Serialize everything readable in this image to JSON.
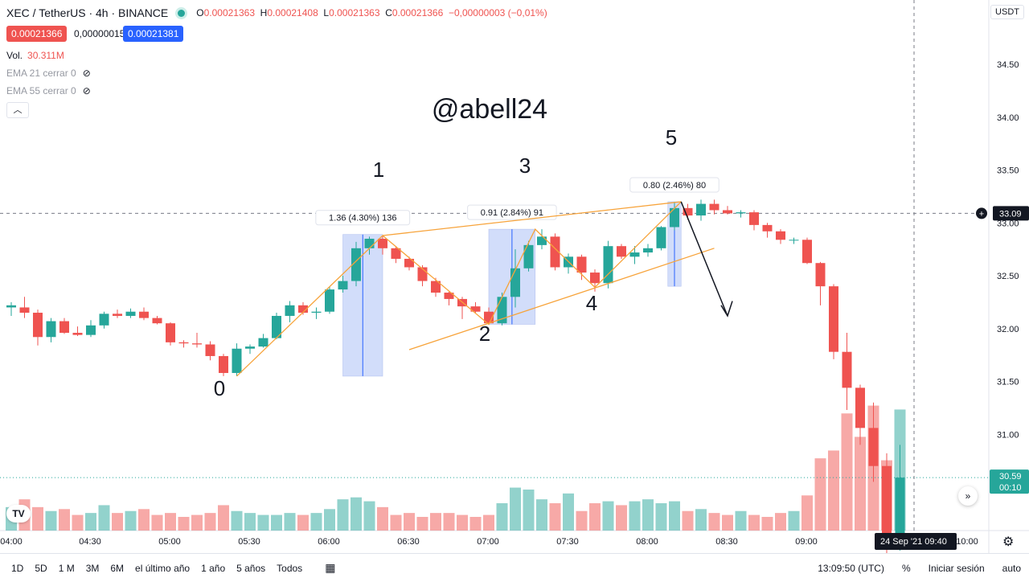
{
  "header": {
    "symbol": "XEC / TetherUS · 4h · BINANCE",
    "open_label": "O",
    "open": "0.00021363",
    "high_label": "H",
    "high": "0.00021408",
    "low_label": "L",
    "low": "0.00021363",
    "close_label": "C",
    "close": "0.00021366",
    "change": "−0,00000003 (−0,01%)",
    "sell_price": "0.00021366",
    "spread": "0,00000015",
    "buy_price": "0.00021381"
  },
  "indicators": {
    "vol_label": "Vol.",
    "vol_value": "30.311M",
    "ema21": "EMA 21 cerrar 0",
    "ema55": "EMA 55 cerrar 0"
  },
  "currency_badge": "USDT",
  "watermark": "@abell24",
  "colors": {
    "up": "#26a69a",
    "down": "#ef5350",
    "upvol": "#26a69a",
    "downvol": "#ef5350",
    "fib": "#f7a33a",
    "box": "#9db5f5"
  },
  "chart_data": {
    "type": "candlestick",
    "y_ticks": [
      "34.50",
      "34.00",
      "33.50",
      "33.00",
      "32.50",
      "32.00",
      "31.50",
      "31.00"
    ],
    "x_ticks": [
      "04:00",
      "04:30",
      "05:00",
      "05:30",
      "06:00",
      "06:30",
      "07:00",
      "07:30",
      "08:00",
      "08:30",
      "09:00",
      "10:00"
    ],
    "current_price": "33.09",
    "last_price": "30.59",
    "last_countdown": "00:10",
    "crosshair_date": "24 Sep '21",
    "crosshair_time": "09:40",
    "candles": [
      [
        32.2,
        32.25,
        32.12,
        32.22
      ],
      [
        32.2,
        32.3,
        32.1,
        32.15
      ],
      [
        32.15,
        32.18,
        31.84,
        31.92
      ],
      [
        31.92,
        32.1,
        31.87,
        32.07
      ],
      [
        32.07,
        32.1,
        31.95,
        31.96
      ],
      [
        31.96,
        32.02,
        31.93,
        31.94
      ],
      [
        31.94,
        32.08,
        31.92,
        32.03
      ],
      [
        32.03,
        32.16,
        32.0,
        32.14
      ],
      [
        32.14,
        32.18,
        32.1,
        32.12
      ],
      [
        32.12,
        32.19,
        32.1,
        32.16
      ],
      [
        32.16,
        32.2,
        32.08,
        32.1
      ],
      [
        32.1,
        32.12,
        32.04,
        32.05
      ],
      [
        32.05,
        32.06,
        31.84,
        31.87
      ],
      [
        31.87,
        31.89,
        31.82,
        31.86
      ],
      [
        31.86,
        31.96,
        31.82,
        31.85
      ],
      [
        31.85,
        31.88,
        31.7,
        31.74
      ],
      [
        31.74,
        31.76,
        31.55,
        31.58
      ],
      [
        31.58,
        31.86,
        31.55,
        31.81
      ],
      [
        31.81,
        31.85,
        31.76,
        31.83
      ],
      [
        31.83,
        31.95,
        31.82,
        31.91
      ],
      [
        31.91,
        32.15,
        31.9,
        32.12
      ],
      [
        32.12,
        32.26,
        32.06,
        32.22
      ],
      [
        32.22,
        32.25,
        32.13,
        32.15
      ],
      [
        32.15,
        32.2,
        32.09,
        32.16
      ],
      [
        32.16,
        32.4,
        32.14,
        32.37
      ],
      [
        32.37,
        32.5,
        32.34,
        32.45
      ],
      [
        32.45,
        32.82,
        32.4,
        32.76
      ],
      [
        32.76,
        32.87,
        32.7,
        32.85
      ],
      [
        32.85,
        32.88,
        32.7,
        32.76
      ],
      [
        32.76,
        32.78,
        32.62,
        32.66
      ],
      [
        32.66,
        32.68,
        32.55,
        32.58
      ],
      [
        32.58,
        32.6,
        32.4,
        32.45
      ],
      [
        32.45,
        32.48,
        32.3,
        32.34
      ],
      [
        32.34,
        32.35,
        32.22,
        32.28
      ],
      [
        32.28,
        32.3,
        32.09,
        32.21
      ],
      [
        32.21,
        32.25,
        32.15,
        32.16
      ],
      [
        32.16,
        32.2,
        32.04,
        32.05
      ],
      [
        32.05,
        32.34,
        32.03,
        32.3
      ],
      [
        32.3,
        32.75,
        32.2,
        32.57
      ],
      [
        32.57,
        32.83,
        32.54,
        32.79
      ],
      [
        32.79,
        32.94,
        32.75,
        32.87
      ],
      [
        32.87,
        32.9,
        32.55,
        32.58
      ],
      [
        32.58,
        32.71,
        32.52,
        32.68
      ],
      [
        32.68,
        32.7,
        32.46,
        32.53
      ],
      [
        32.53,
        32.56,
        32.35,
        32.43
      ],
      [
        32.43,
        32.83,
        32.38,
        32.78
      ],
      [
        32.78,
        32.8,
        32.66,
        32.68
      ],
      [
        32.68,
        32.78,
        32.61,
        32.72
      ],
      [
        32.72,
        32.8,
        32.68,
        32.76
      ],
      [
        32.76,
        32.97,
        32.74,
        32.96
      ],
      [
        32.96,
        33.2,
        32.93,
        33.14
      ],
      [
        33.14,
        33.18,
        33.03,
        33.07
      ],
      [
        33.07,
        33.22,
        33.02,
        33.18
      ],
      [
        33.18,
        33.22,
        33.08,
        33.12
      ],
      [
        33.12,
        33.16,
        33.08,
        33.09
      ],
      [
        33.09,
        33.12,
        33.05,
        33.1
      ],
      [
        33.1,
        33.12,
        32.93,
        32.98
      ],
      [
        32.98,
        33.0,
        32.86,
        32.92
      ],
      [
        32.92,
        32.94,
        32.8,
        32.84
      ],
      [
        32.84,
        32.86,
        32.8,
        32.84
      ],
      [
        32.84,
        32.86,
        32.61,
        32.62
      ],
      [
        32.62,
        32.63,
        32.22,
        32.4
      ],
      [
        32.4,
        32.42,
        31.71,
        31.78
      ],
      [
        31.78,
        31.96,
        31.23,
        31.44
      ],
      [
        31.44,
        31.47,
        30.9,
        31.06
      ],
      [
        31.06,
        31.3,
        30.55,
        30.7
      ],
      [
        30.7,
        30.82,
        29.6,
        29.95
      ],
      [
        29.95,
        30.9,
        29.9,
        30.59
      ]
    ],
    "volumes": [
      12,
      16,
      12,
      10,
      11,
      8,
      9,
      13,
      9,
      10,
      11,
      8,
      9,
      7,
      8,
      9,
      13,
      10,
      9,
      8,
      8,
      9,
      8,
      9,
      11,
      16,
      17,
      15,
      12,
      8,
      9,
      7,
      9,
      9,
      8,
      7,
      8,
      14,
      22,
      21,
      16,
      14,
      19,
      10,
      14,
      15,
      13,
      15,
      16,
      14,
      15,
      10,
      11,
      9,
      8,
      10,
      8,
      7,
      9,
      10,
      18,
      37,
      41,
      60,
      48,
      64,
      36,
      62
    ]
  },
  "annotations": {
    "waves": [
      "0",
      "1",
      "2",
      "3",
      "4",
      "5"
    ],
    "measure_1": "1.36 (4.30%) 136",
    "measure_3": "0.91 (2.84%) 91",
    "measure_5": "0.80 (2.46%) 80"
  },
  "bottom": {
    "ranges": [
      "1D",
      "5D",
      "1 M",
      "3M",
      "6M",
      "el último año",
      "1 año",
      "5 años",
      "Todos"
    ],
    "time": "13:09:50 (UTC)",
    "percent": "%",
    "login": "Iniciar sesión",
    "auto": "auto"
  }
}
